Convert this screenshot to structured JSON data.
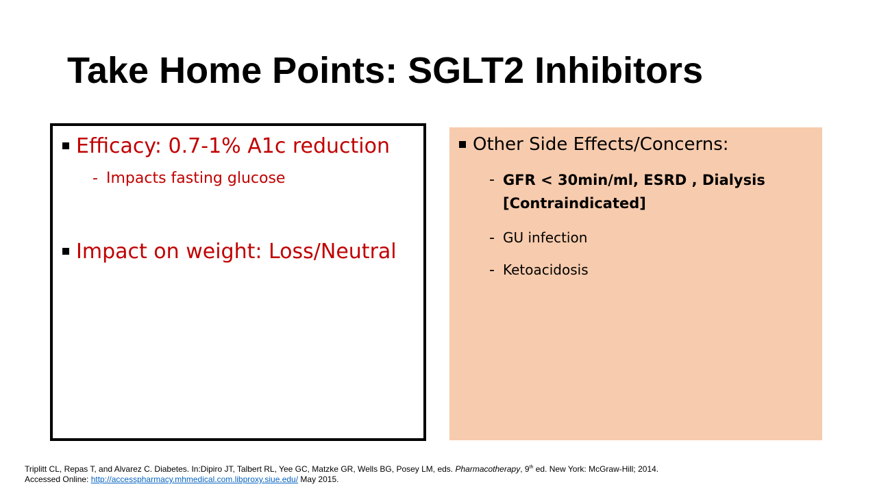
{
  "slide": {
    "title": "Take Home Points: SGLT2 Inhibitors"
  },
  "left_panel": {
    "bullets": [
      {
        "text": "Efficacy: 0.7-1% A1c reduction",
        "sub": [
          "Impacts fasting glucose"
        ]
      },
      {
        "text": "Impact on weight: Loss/Neutral",
        "sub": []
      }
    ]
  },
  "right_panel": {
    "heading": "Other Side Effects/Concerns:",
    "items": [
      {
        "line1": "GFR < 30min/ml, ESRD , Dialysis",
        "line2": "[Contraindicated]"
      },
      {
        "line1": "GU infection"
      },
      {
        "line1": "Ketoacidosis"
      }
    ]
  },
  "colors": {
    "accent_red": "#c00000",
    "panel_fill": "#f7cbad",
    "link_blue": "#0563c1"
  },
  "footer": {
    "line1_pre": "Triplitt CL, Repas T, and Alvarez C.  Diabetes.  In:Dipiro JT, Talbert RL, Yee GC, Matzke GR, Wells BG, Posey LM, eds. ",
    "book": "Pharmacotherapy",
    "line1_mid": ", 9",
    "sup": "th",
    "line1_post": " ed. New York: McGraw-Hill;  2014.",
    "line2_pre": "Accessed Online: ",
    "link": "http://accesspharmacy.mhmedical.com.libproxy.siue.edu/",
    "line2_post": "  May 2015."
  }
}
